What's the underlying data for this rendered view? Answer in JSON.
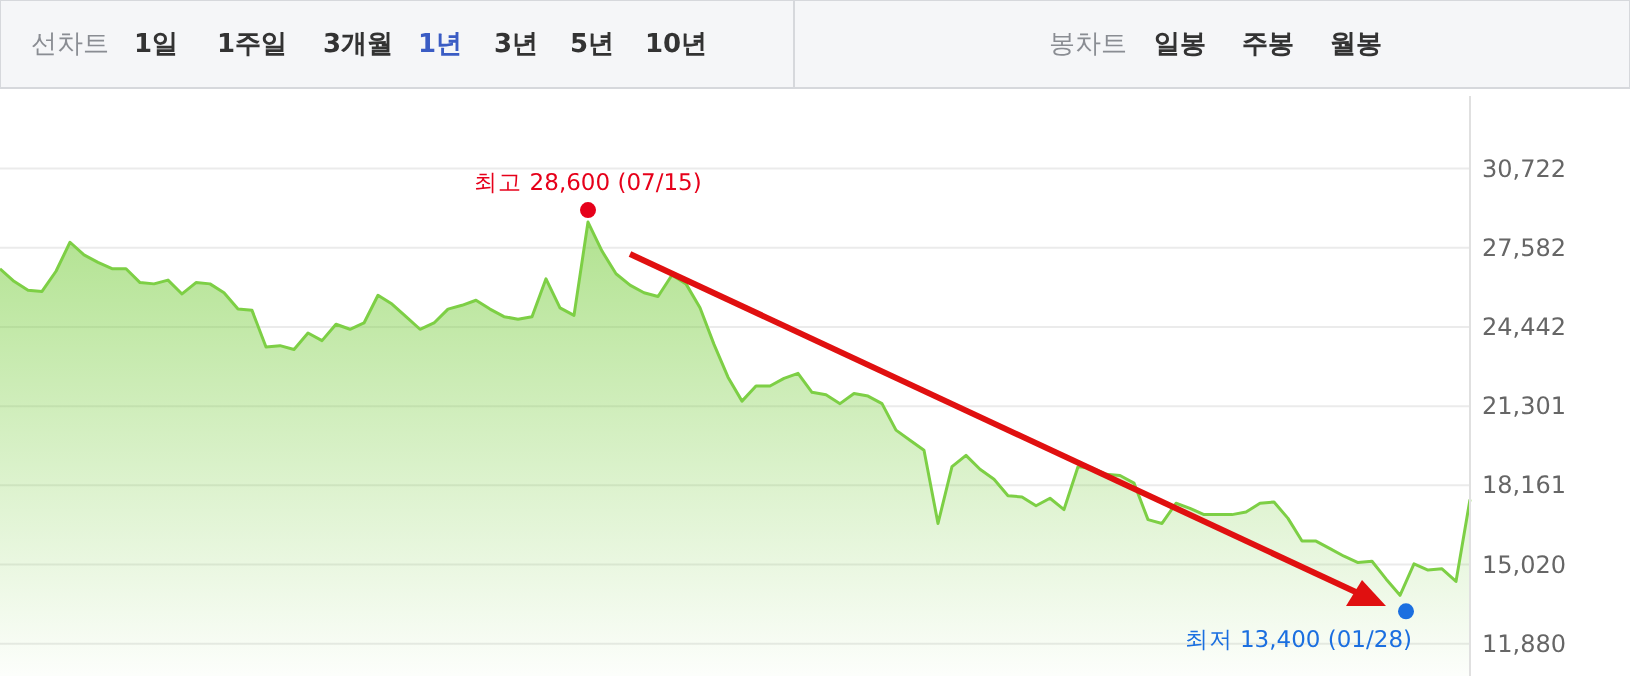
{
  "chart_data": {
    "type": "area",
    "categories": [
      null,
      null,
      null,
      null,
      null,
      null,
      null,
      null,
      null,
      null,
      null,
      null,
      null,
      null,
      null,
      null,
      null,
      null,
      null,
      null,
      null,
      null,
      null,
      null,
      null,
      null,
      null,
      null,
      null,
      null,
      null,
      null,
      null,
      null,
      null,
      null,
      null,
      null,
      null,
      null,
      null,
      null,
      null,
      null,
      null,
      null,
      null,
      null,
      null,
      null,
      null,
      null,
      null,
      null,
      null,
      null,
      null,
      null,
      null,
      null,
      null,
      null,
      null,
      null,
      null,
      null,
      null,
      null,
      null,
      null,
      null,
      null,
      null,
      null,
      null,
      null,
      null,
      null,
      null,
      null,
      null,
      null,
      null,
      null,
      null,
      null,
      null,
      null,
      null,
      null,
      null,
      null,
      null,
      null,
      null,
      null,
      null,
      null,
      null,
      null,
      null,
      null,
      null,
      null,
      null,
      null
    ],
    "series": [
      {
        "color": "#7dcf45",
        "values": [
          26750,
          26250,
          25900,
          25850,
          26650,
          27800,
          27300,
          27000,
          26750,
          26750,
          26200,
          26150,
          26300,
          25750,
          26200,
          26150,
          25800,
          25150,
          25100,
          23650,
          23700,
          23550,
          24200,
          23900,
          24550,
          24350,
          24600,
          25700,
          25350,
          24850,
          24350,
          24600,
          25150,
          25300,
          25500,
          25150,
          24850,
          24750,
          24850,
          26350,
          25200,
          24900,
          28600,
          27450,
          26550,
          26100,
          25800,
          25650,
          26500,
          26150,
          25200,
          23750,
          22450,
          21500,
          22100,
          22100,
          22400,
          22600,
          21850,
          21750,
          21400,
          21800,
          21700,
          21400,
          20350,
          19950,
          19550,
          16650,
          18900,
          19350,
          18800,
          18400,
          17750,
          17700,
          17350,
          17650,
          17200,
          18900,
          18850,
          18600,
          18550,
          18250,
          16800,
          16650,
          17450,
          17250,
          17000,
          17000,
          17000,
          17100,
          17450,
          17500,
          16850,
          15950,
          15950,
          15650,
          15350,
          15100,
          15150,
          14450,
          13800,
          15050,
          14800,
          14850,
          14350,
          17600
        ]
      }
    ],
    "ylim": [
      10600,
      33600
    ],
    "yticks": [
      {
        "value": 11880,
        "label": "11,880"
      },
      {
        "value": 15020,
        "label": "15,020"
      },
      {
        "value": 18161,
        "label": "18,161"
      },
      {
        "value": 21301,
        "label": "21,301"
      },
      {
        "value": 24442,
        "label": "24,442"
      },
      {
        "value": 27582,
        "label": "27,582"
      },
      {
        "value": 30722,
        "label": "30,722"
      }
    ],
    "tick_labels": "y",
    "grid": "y",
    "annotations": [
      "선차트",
      "1일",
      "1주일",
      "3개월",
      "1년",
      "3년",
      "5년",
      "10년",
      "봉차트",
      "일봉",
      "주봉",
      "월봉",
      {
        "text": "최고 28,600 (07/15)",
        "y": 28600
      },
      "최저 13,400 (01/28)"
    ]
  }
}
